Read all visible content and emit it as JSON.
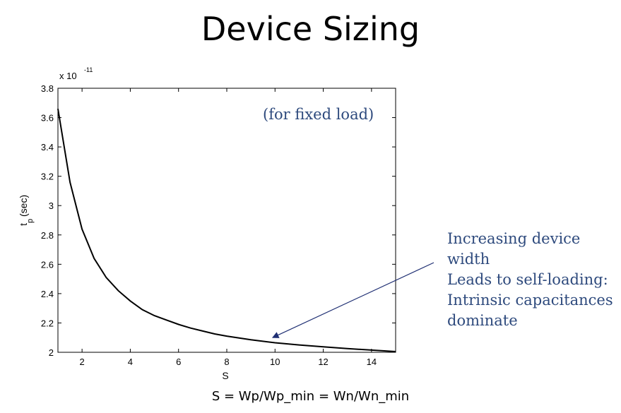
{
  "slide": {
    "title": "Device Sizing",
    "caption": "S = Wp/Wp_min = Wn/Wn_min",
    "annotation_fixed_load": "(for fixed load)",
    "annotation_lines": [
      "Increasing device width",
      "Leads to self-loading:",
      "Intrinsic capacitances",
      "dominate"
    ],
    "annotation_color": "#2e4a7d",
    "arrow_color": "#1f2f73"
  },
  "chart_data": {
    "type": "line",
    "title": "",
    "xlabel": "S",
    "ylabel_main": "t",
    "ylabel_sub": "p",
    "ylabel_unit": "(sec)",
    "y_multiplier_base": "x 10",
    "y_multiplier_exp": "-11",
    "xlim": [
      1,
      15
    ],
    "ylim": [
      2,
      3.8
    ],
    "xticks": [
      2,
      4,
      6,
      8,
      10,
      12,
      14
    ],
    "xtick_labels": [
      "2",
      "4",
      "6",
      "8",
      "10",
      "12",
      "14"
    ],
    "yticks": [
      2,
      2.2,
      2.4,
      2.6,
      2.8,
      3,
      3.2,
      3.4,
      3.6,
      3.8
    ],
    "ytick_labels": [
      "2",
      "2.2",
      "2.4",
      "2.6",
      "2.8",
      "3",
      "3.2",
      "3.4",
      "3.6",
      "3.8"
    ],
    "grid": false,
    "line_color": "#000000",
    "series": [
      {
        "x": [
          1,
          1.5,
          2,
          2.5,
          3,
          3.5,
          4,
          4.5,
          5,
          5.5,
          6,
          6.5,
          7,
          7.5,
          8,
          9,
          10,
          11,
          12,
          13,
          14,
          15
        ],
        "y": [
          3.66,
          3.16,
          2.84,
          2.64,
          2.51,
          2.42,
          2.35,
          2.29,
          2.25,
          2.22,
          2.19,
          2.165,
          2.145,
          2.125,
          2.11,
          2.085,
          2.065,
          2.05,
          2.037,
          2.025,
          2.015,
          2.005
        ]
      }
    ],
    "arrow_target": {
      "x": 9.9,
      "y": 2.1
    }
  }
}
